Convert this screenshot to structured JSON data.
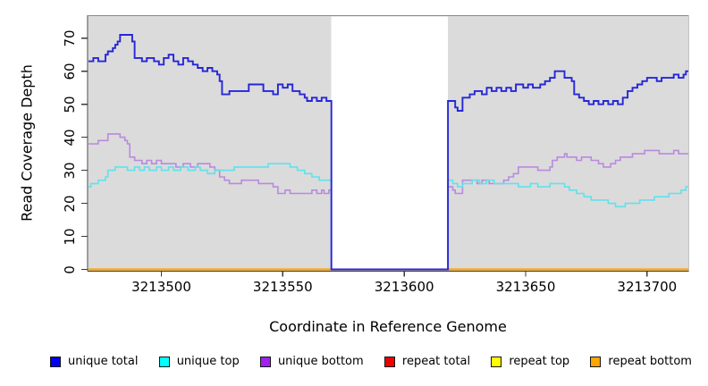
{
  "chart_data": {
    "type": "line",
    "subtype": "step-post",
    "title": "",
    "xlabel": "Coordinate in Reference Genome",
    "ylabel": "Read Coverage Depth",
    "xlim": [
      3213470,
      3213717
    ],
    "ylim": [
      0,
      77
    ],
    "x_ticks": [
      3213500,
      3213550,
      3213600,
      3213650,
      3213700
    ],
    "y_ticks": [
      0,
      10,
      20,
      30,
      40,
      50,
      60,
      70
    ],
    "grid": "off",
    "legend_position": "bottom",
    "plot_background": "#dbdbdb",
    "missing_region": {
      "x_start": 3213570,
      "x_end": 3213618,
      "color": "#ffffff"
    },
    "series": [
      {
        "name": "unique total",
        "color": "#0000ee",
        "line_color": "#2626d8",
        "line_width": 1.9,
        "z": 6,
        "points": [
          [
            3213470,
            63
          ],
          [
            3213472,
            64
          ],
          [
            3213474,
            63
          ],
          [
            3213477,
            65
          ],
          [
            3213478,
            66
          ],
          [
            3213480,
            67
          ],
          [
            3213481,
            68
          ],
          [
            3213482,
            69
          ],
          [
            3213483,
            71
          ],
          [
            3213488,
            69
          ],
          [
            3213489,
            64
          ],
          [
            3213492,
            63
          ],
          [
            3213494,
            64
          ],
          [
            3213497,
            63
          ],
          [
            3213499,
            62
          ],
          [
            3213501,
            64
          ],
          [
            3213503,
            65
          ],
          [
            3213505,
            63
          ],
          [
            3213507,
            62
          ],
          [
            3213509,
            64
          ],
          [
            3213511,
            63
          ],
          [
            3213513,
            62
          ],
          [
            3213515,
            61
          ],
          [
            3213517,
            60
          ],
          [
            3213519,
            61
          ],
          [
            3213521,
            60
          ],
          [
            3213523,
            59
          ],
          [
            3213524,
            57
          ],
          [
            3213525,
            53
          ],
          [
            3213528,
            54
          ],
          [
            3213536,
            56
          ],
          [
            3213542,
            54
          ],
          [
            3213546,
            53
          ],
          [
            3213548,
            56
          ],
          [
            3213550,
            55
          ],
          [
            3213552,
            56
          ],
          [
            3213554,
            54
          ],
          [
            3213557,
            53
          ],
          [
            3213559,
            52
          ],
          [
            3213560,
            51
          ],
          [
            3213562,
            52
          ],
          [
            3213564,
            51
          ],
          [
            3213566,
            52
          ],
          [
            3213568,
            51
          ],
          [
            3213570,
            0
          ],
          [
            3213618,
            51
          ],
          [
            3213621,
            49
          ],
          [
            3213622,
            48
          ],
          [
            3213624,
            52
          ],
          [
            3213627,
            53
          ],
          [
            3213629,
            54
          ],
          [
            3213632,
            53
          ],
          [
            3213634,
            55
          ],
          [
            3213636,
            54
          ],
          [
            3213638,
            55
          ],
          [
            3213640,
            54
          ],
          [
            3213642,
            55
          ],
          [
            3213644,
            54
          ],
          [
            3213646,
            56
          ],
          [
            3213649,
            55
          ],
          [
            3213651,
            56
          ],
          [
            3213653,
            55
          ],
          [
            3213656,
            56
          ],
          [
            3213658,
            57
          ],
          [
            3213660,
            58
          ],
          [
            3213662,
            60
          ],
          [
            3213666,
            58
          ],
          [
            3213669,
            57
          ],
          [
            3213670,
            53
          ],
          [
            3213672,
            52
          ],
          [
            3213674,
            51
          ],
          [
            3213676,
            50
          ],
          [
            3213678,
            51
          ],
          [
            3213680,
            50
          ],
          [
            3213682,
            51
          ],
          [
            3213684,
            50
          ],
          [
            3213686,
            51
          ],
          [
            3213688,
            50
          ],
          [
            3213690,
            52
          ],
          [
            3213692,
            54
          ],
          [
            3213694,
            55
          ],
          [
            3213696,
            56
          ],
          [
            3213698,
            57
          ],
          [
            3213700,
            58
          ],
          [
            3213704,
            57
          ],
          [
            3213706,
            58
          ],
          [
            3213709,
            58
          ],
          [
            3213711,
            59
          ],
          [
            3213713,
            58
          ],
          [
            3213715,
            59
          ],
          [
            3213716,
            60
          ]
        ]
      },
      {
        "name": "unique top",
        "color": "#00ffff",
        "line_color": "#5fe2ec",
        "line_width": 1.6,
        "z": 5,
        "points": [
          [
            3213470,
            25
          ],
          [
            3213471,
            26
          ],
          [
            3213474,
            27
          ],
          [
            3213477,
            28
          ],
          [
            3213478,
            30
          ],
          [
            3213481,
            31
          ],
          [
            3213486,
            30
          ],
          [
            3213489,
            31
          ],
          [
            3213491,
            30
          ],
          [
            3213493,
            31
          ],
          [
            3213495,
            30
          ],
          [
            3213498,
            31
          ],
          [
            3213500,
            30
          ],
          [
            3213503,
            31
          ],
          [
            3213505,
            30
          ],
          [
            3213508,
            31
          ],
          [
            3213511,
            30
          ],
          [
            3213514,
            31
          ],
          [
            3213516,
            30
          ],
          [
            3213519,
            29
          ],
          [
            3213522,
            30
          ],
          [
            3213526,
            30
          ],
          [
            3213530,
            31
          ],
          [
            3213540,
            31
          ],
          [
            3213544,
            32
          ],
          [
            3213549,
            32
          ],
          [
            3213553,
            31
          ],
          [
            3213556,
            30
          ],
          [
            3213559,
            29
          ],
          [
            3213562,
            28
          ],
          [
            3213565,
            27
          ],
          [
            3213570,
            0
          ],
          [
            3213618,
            27
          ],
          [
            3213620,
            26
          ],
          [
            3213622,
            25
          ],
          [
            3213624,
            26
          ],
          [
            3213628,
            27
          ],
          [
            3213631,
            26
          ],
          [
            3213634,
            27
          ],
          [
            3213637,
            26
          ],
          [
            3213642,
            26
          ],
          [
            3213647,
            25
          ],
          [
            3213652,
            26
          ],
          [
            3213655,
            25
          ],
          [
            3213660,
            26
          ],
          [
            3213663,
            26
          ],
          [
            3213666,
            25
          ],
          [
            3213668,
            24
          ],
          [
            3213671,
            23
          ],
          [
            3213674,
            22
          ],
          [
            3213677,
            21
          ],
          [
            3213681,
            21
          ],
          [
            3213684,
            20
          ],
          [
            3213687,
            19
          ],
          [
            3213691,
            20
          ],
          [
            3213694,
            20
          ],
          [
            3213697,
            21
          ],
          [
            3213700,
            21
          ],
          [
            3213703,
            22
          ],
          [
            3213706,
            22
          ],
          [
            3213709,
            23
          ],
          [
            3213712,
            23
          ],
          [
            3213714,
            24
          ],
          [
            3213716,
            25
          ]
        ]
      },
      {
        "name": "unique bottom",
        "color": "#a020f0",
        "line_color": "#b98ade",
        "line_width": 1.6,
        "z": 4,
        "points": [
          [
            3213470,
            38
          ],
          [
            3213474,
            39
          ],
          [
            3213478,
            41
          ],
          [
            3213483,
            40
          ],
          [
            3213485,
            39
          ],
          [
            3213486,
            38
          ],
          [
            3213487,
            34
          ],
          [
            3213489,
            33
          ],
          [
            3213492,
            32
          ],
          [
            3213494,
            33
          ],
          [
            3213496,
            32
          ],
          [
            3213498,
            33
          ],
          [
            3213500,
            32
          ],
          [
            3213503,
            32
          ],
          [
            3213506,
            31
          ],
          [
            3213509,
            32
          ],
          [
            3213512,
            31
          ],
          [
            3213515,
            32
          ],
          [
            3213518,
            32
          ],
          [
            3213520,
            31
          ],
          [
            3213522,
            30
          ],
          [
            3213524,
            28
          ],
          [
            3213526,
            27
          ],
          [
            3213528,
            26
          ],
          [
            3213533,
            27
          ],
          [
            3213537,
            27
          ],
          [
            3213540,
            26
          ],
          [
            3213543,
            26
          ],
          [
            3213546,
            25
          ],
          [
            3213548,
            23
          ],
          [
            3213551,
            24
          ],
          [
            3213553,
            23
          ],
          [
            3213562,
            24
          ],
          [
            3213564,
            23
          ],
          [
            3213566,
            24
          ],
          [
            3213567,
            23
          ],
          [
            3213569,
            24
          ],
          [
            3213570,
            0
          ],
          [
            3213618,
            25
          ],
          [
            3213620,
            24
          ],
          [
            3213621,
            23
          ],
          [
            3213624,
            27
          ],
          [
            3213630,
            26
          ],
          [
            3213632,
            27
          ],
          [
            3213635,
            26
          ],
          [
            3213641,
            27
          ],
          [
            3213643,
            28
          ],
          [
            3213645,
            29
          ],
          [
            3213647,
            31
          ],
          [
            3213655,
            30
          ],
          [
            3213660,
            31
          ],
          [
            3213661,
            33
          ],
          [
            3213663,
            34
          ],
          [
            3213666,
            35
          ],
          [
            3213667,
            34
          ],
          [
            3213671,
            33
          ],
          [
            3213673,
            34
          ],
          [
            3213677,
            33
          ],
          [
            3213680,
            32
          ],
          [
            3213682,
            31
          ],
          [
            3213685,
            32
          ],
          [
            3213687,
            33
          ],
          [
            3213689,
            34
          ],
          [
            3213694,
            35
          ],
          [
            3213699,
            36
          ],
          [
            3213705,
            35
          ],
          [
            3213711,
            36
          ],
          [
            3213713,
            35
          ],
          [
            3213716,
            35
          ]
        ]
      },
      {
        "name": "repeat total",
        "color": "#ee0000",
        "line_color": "#ee0000",
        "line_width": 1.5,
        "z": 1,
        "points": [
          [
            3213470,
            0
          ]
        ]
      },
      {
        "name": "repeat top",
        "color": "#ffff00",
        "line_color": "#ffff00",
        "line_width": 1.5,
        "z": 2,
        "points": [
          [
            3213470,
            0
          ]
        ]
      },
      {
        "name": "repeat bottom",
        "color": "#ffa500",
        "line_color": "#ffa500",
        "line_width": 2.2,
        "z": 3,
        "points": [
          [
            3213470,
            0
          ]
        ]
      }
    ]
  }
}
